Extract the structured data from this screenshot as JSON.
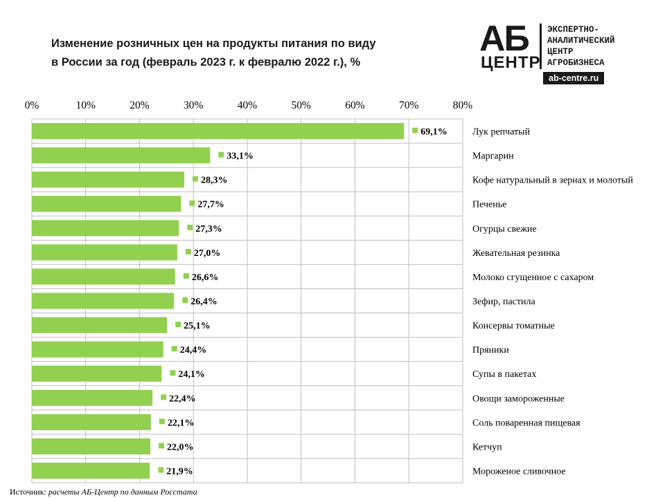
{
  "header": {
    "title_line1": "Изменение розничных цен на продукты питания по виду",
    "title_line2": "в России за год (февраль 2023 г. к февралю 2022 г.), %"
  },
  "logo": {
    "mark_top": "АБ",
    "mark_bottom": "ЦЕНТР",
    "lines": [
      "ЭКСПЕРТНО-",
      "АНАЛИТИЧЕСКИЙ",
      "ЦЕНТР",
      "АГРОБИЗНЕСА"
    ],
    "site": "ab-centre.ru"
  },
  "colors": {
    "bar": "#92d050",
    "grid": "#bfbfbf",
    "text": "#000000"
  },
  "chart_data": {
    "type": "bar",
    "orientation": "horizontal",
    "title": "Изменение розничных цен на продукты питания по виду в России за год (февраль 2023 г. к февралю 2022 г.), %",
    "xlim": [
      0,
      80
    ],
    "x_ticks": [
      "0%",
      "10%",
      "20%",
      "30%",
      "40%",
      "50%",
      "60%",
      "70%",
      "80%"
    ],
    "x_tick_values": [
      0,
      10,
      20,
      30,
      40,
      50,
      60,
      70,
      80
    ],
    "axis_position": "top",
    "grid": true,
    "categories": [
      "Лук репчатый",
      "Маргарин",
      "Кофе натуральный в зернах и молотый",
      "Печенье",
      "Огурцы свежие",
      "Жевательная резинка",
      "Молоко сгущенное с сахаром",
      "Зефир, пастила",
      "Консервы томатные",
      "Пряники",
      "Супы в пакетах",
      "Овощи замороженные",
      "Соль поваренная пищевая",
      "Кетчуп",
      "Мороженое сливочное"
    ],
    "values": [
      69.1,
      33.1,
      28.3,
      27.7,
      27.3,
      27.0,
      26.6,
      26.4,
      25.1,
      24.4,
      24.1,
      22.4,
      22.1,
      22.0,
      21.9
    ],
    "value_labels": [
      "69,1%",
      "33,1%",
      "28,3%",
      "27,7%",
      "27,3%",
      "27,0%",
      "26,6%",
      "26,4%",
      "25,1%",
      "24,4%",
      "24,1%",
      "22,4%",
      "22,1%",
      "22,0%",
      "21,9%"
    ]
  },
  "source": {
    "label": "Источник:",
    "text": "расчеты АБ-Центр по данным Росстата"
  }
}
